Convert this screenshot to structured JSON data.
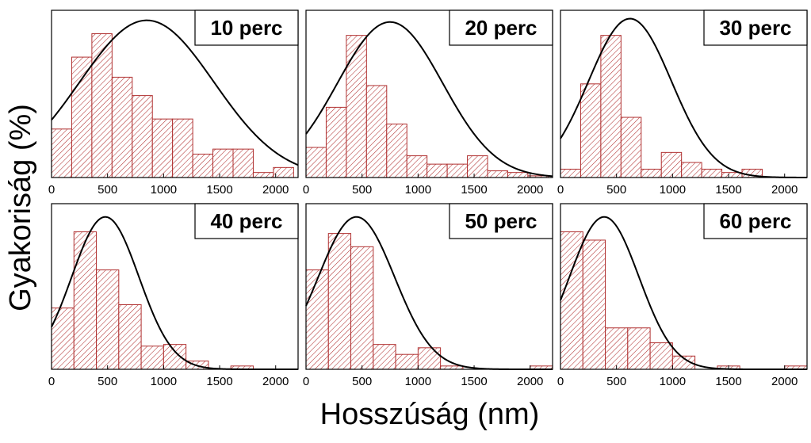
{
  "figure": {
    "ylabel": "Gyakoriság (%)",
    "xlabel": "Hosszúság (nm)",
    "bar_color": "#b03030",
    "curve_color": "#000000"
  },
  "chart_data": [
    {
      "type": "bar",
      "title": "10 perc",
      "bin_width": 180,
      "bin_starts": [
        0,
        180,
        360,
        540,
        720,
        900,
        1080,
        1260,
        1440,
        1620,
        1800,
        1980
      ],
      "values": [
        29,
        72,
        86,
        60,
        49,
        35,
        35,
        14,
        17,
        17,
        3,
        6
      ],
      "xlim": [
        0,
        2200
      ],
      "ylim": [
        0,
        100
      ],
      "xticks": [
        0,
        500,
        1000,
        1500,
        2000
      ],
      "legend": "top-right",
      "fit_curve": {
        "type": "normal",
        "mean": 850,
        "sd": 600,
        "peak": 94
      }
    },
    {
      "type": "bar",
      "title": "20 perc",
      "bin_width": 180,
      "bin_starts": [
        0,
        180,
        360,
        540,
        720,
        900,
        1080,
        1260,
        1440,
        1620,
        1800,
        1980
      ],
      "values": [
        18,
        42,
        85,
        55,
        32,
        13,
        8,
        8,
        13,
        4,
        3,
        1
      ],
      "xlim": [
        0,
        2200
      ],
      "ylim": [
        0,
        100
      ],
      "xticks": [
        0,
        500,
        1000,
        1500,
        2000
      ],
      "legend": "top-right",
      "fit_curve": {
        "type": "normal",
        "mean": 750,
        "sd": 470,
        "peak": 93
      }
    },
    {
      "type": "bar",
      "title": "30 perc",
      "bin_width": 180,
      "bin_starts": [
        0,
        180,
        360,
        540,
        720,
        900,
        1080,
        1260,
        1440,
        1620
      ],
      "values": [
        5,
        56,
        85,
        36,
        5,
        15,
        9,
        5,
        3,
        5
      ],
      "xlim": [
        0,
        2200
      ],
      "ylim": [
        0,
        100
      ],
      "xticks": [
        0,
        500,
        1000,
        1500,
        2000
      ],
      "legend": "top-right",
      "fit_curve": {
        "type": "normal",
        "mean": 620,
        "sd": 370,
        "peak": 95
      }
    },
    {
      "type": "bar",
      "title": "40 perc",
      "bin_width": 200,
      "bin_starts": [
        0,
        200,
        400,
        600,
        800,
        1000,
        1200,
        1600
      ],
      "values": [
        37,
        83,
        60,
        39,
        14,
        15,
        5,
        2
      ],
      "xlim": [
        0,
        2200
      ],
      "ylim": [
        0,
        100
      ],
      "xticks": [
        0,
        500,
        1000,
        1500,
        2000
      ],
      "legend": "top-right",
      "fit_curve": {
        "type": "normal",
        "mean": 480,
        "sd": 300,
        "peak": 92
      }
    },
    {
      "type": "bar",
      "title": "50 perc",
      "bin_width": 200,
      "bin_starts": [
        0,
        200,
        400,
        600,
        800,
        1000,
        1200,
        2000
      ],
      "values": [
        60,
        82,
        74,
        15,
        9,
        13,
        2,
        2
      ],
      "xlim": [
        0,
        2200
      ],
      "ylim": [
        0,
        100
      ],
      "xticks": [
        0,
        500,
        1000,
        1500,
        2000
      ],
      "legend": "top-right",
      "fit_curve": {
        "type": "normal",
        "mean": 450,
        "sd": 340,
        "peak": 92
      }
    },
    {
      "type": "bar",
      "title": "60 perc",
      "bin_width": 200,
      "bin_starts": [
        0,
        200,
        400,
        600,
        800,
        1000,
        1400,
        2000
      ],
      "values": [
        83,
        78,
        25,
        25,
        16,
        8,
        2,
        2
      ],
      "xlim": [
        0,
        2200
      ],
      "ylim": [
        0,
        100
      ],
      "xticks": [
        0,
        500,
        1000,
        1500,
        2000
      ],
      "legend": "top-right",
      "fit_curve": {
        "type": "normal",
        "mean": 390,
        "sd": 310,
        "peak": 92
      }
    }
  ]
}
